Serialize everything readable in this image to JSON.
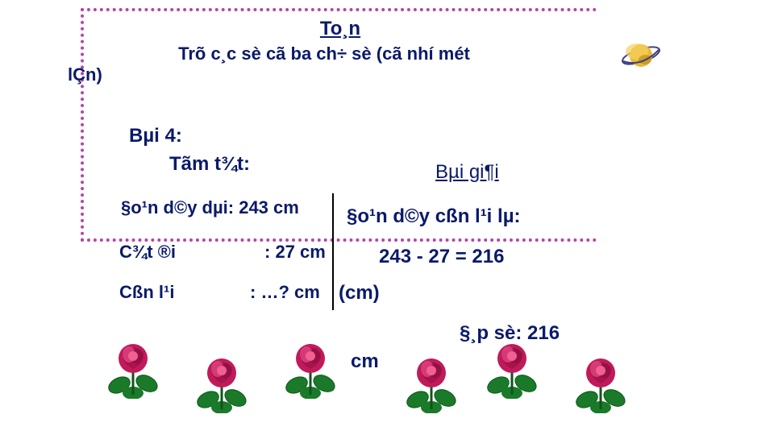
{
  "colors": {
    "border": "#b545a3",
    "text": "#0a1a6a",
    "bg": "#ffffff",
    "rose_petal": "#c11a5a",
    "rose_petal_dark": "#8a0d3f",
    "rose_leaf": "#1a7a2a",
    "rose_leaf_dark": "#0d5518",
    "planet_body": "#e8b838",
    "planet_shadow": "#b88818",
    "planet_ring": "#404080"
  },
  "title": "To¸n",
  "subtitle_pre": "Trõ c¸c sè cã ba ch÷ sè (cã nhí mét",
  "subtitle_post": "lÇn)",
  "bai4": "Bµi 4:",
  "tomtat": "Tãm t¾t:",
  "baigiai": "Bµi gi¶i",
  "given": {
    "line1": "§o¹n d©y dµi: 243 cm",
    "line2a": "C¾t ®i",
    "line2b": ": 27 cm",
    "line3a": "Cßn l¹i",
    "line3b": ": …? cm"
  },
  "solution": {
    "line1": "§o¹n d©y cßn l¹i lµ:",
    "line2": "243 - 27 = 216",
    "line2b": "(cm)",
    "answer": "§¸p sè: 216",
    "answer2": "cm"
  },
  "fontsize": {
    "title": 24,
    "body": 22
  }
}
